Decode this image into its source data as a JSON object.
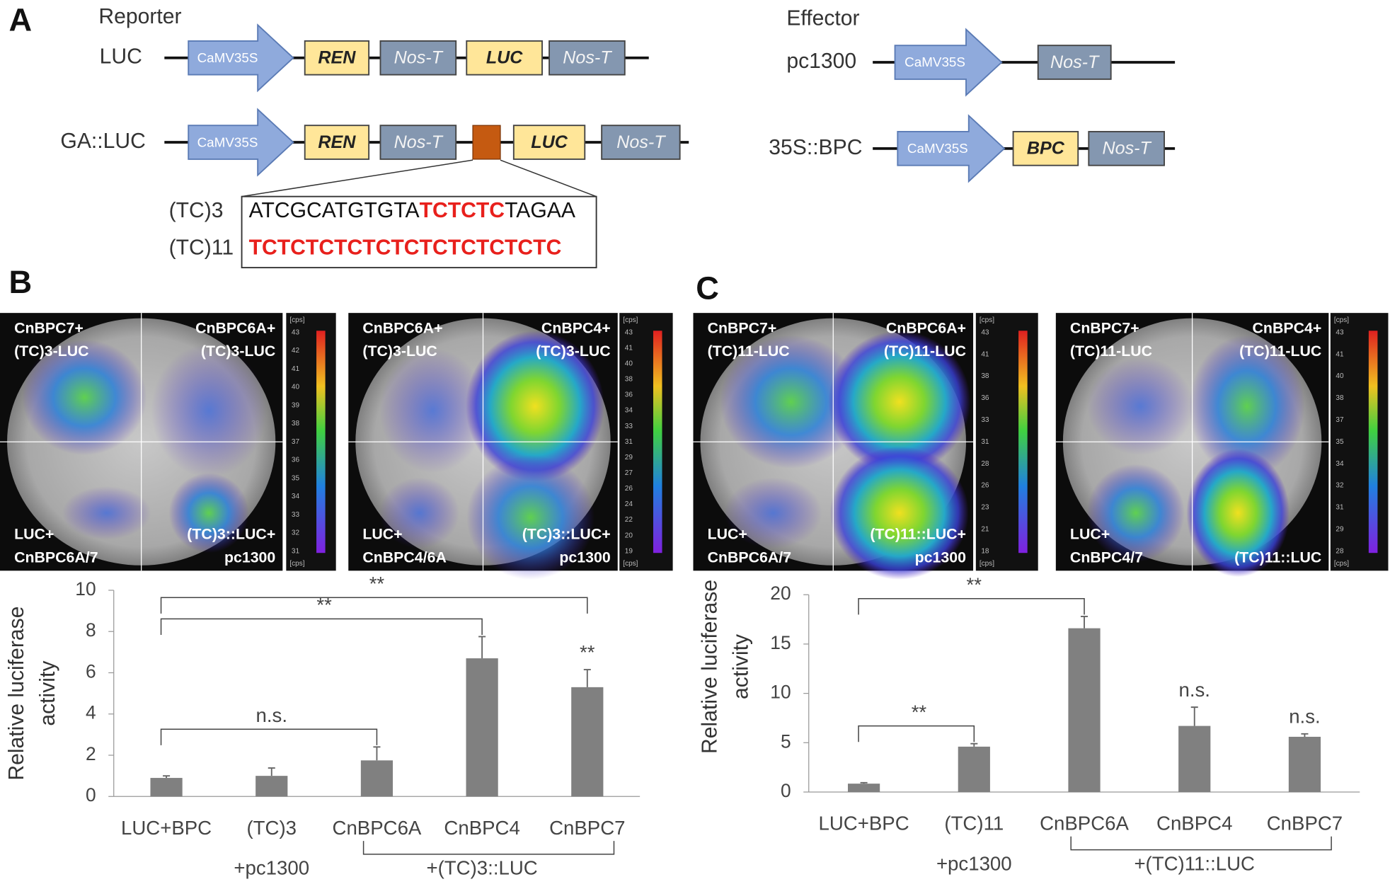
{
  "panels": [
    "A",
    "B",
    "C"
  ],
  "diagram": {
    "reporter_title": "Reporter",
    "effector_title": "Effector",
    "constructs": [
      {
        "name": "LUC",
        "parts": [
          "CaMV35S",
          "REN",
          "Nos-T",
          "LUC",
          "Nos-T"
        ]
      },
      {
        "name": "GA::LUC",
        "parts": [
          "CaMV35S",
          "REN",
          "Nos-T",
          "LUC",
          "Nos-T"
        ]
      },
      {
        "name": "pc1300",
        "parts": [
          "CaMV35S",
          "Nos-T"
        ]
      },
      {
        "name": "35S::BPC",
        "parts": [
          "CaMV35S",
          "BPC",
          "Nos-T"
        ]
      }
    ],
    "sequences": [
      {
        "name": "(TC)3",
        "segments": [
          {
            "text": "ATCGCATGTGTA",
            "color": "#111111"
          },
          {
            "text": "TCTCTC",
            "color": "#e8201c"
          },
          {
            "text": "TAGAA",
            "color": "#111111"
          }
        ]
      },
      {
        "name": "(TC)11",
        "segments": [
          {
            "text": "TCTCTCTCTCTCTCTCTCTCTC",
            "color": "#e8201c"
          }
        ]
      }
    ]
  },
  "images": [
    {
      "quadrants": [
        [
          "CnBPC7+",
          "(TC)3-LUC"
        ],
        [
          "CnBPC6A+",
          "(TC)3-LUC"
        ],
        [
          "LUC+",
          "CnBPC6A/7"
        ],
        [
          "(TC)3::LUC+",
          "pc1300"
        ]
      ],
      "colorbar": {
        "unit": "[cps]",
        "ticks": [
          43,
          42,
          41,
          40,
          39,
          38,
          37,
          36,
          35,
          34,
          33,
          32,
          31
        ]
      }
    },
    {
      "quadrants": [
        [
          "CnBPC6A+",
          "(TC)3-LUC"
        ],
        [
          "CnBPC4+",
          "(TC)3-LUC"
        ],
        [
          "LUC+",
          "CnBPC4/6A"
        ],
        [
          "(TC)3::LUC+",
          "pc1300"
        ]
      ],
      "colorbar": {
        "unit": "[cps]",
        "ticks": [
          43,
          41,
          40,
          38,
          36,
          34,
          33,
          31,
          29,
          27,
          26,
          24,
          22,
          20,
          19
        ]
      }
    },
    {
      "quadrants": [
        [
          "CnBPC7+",
          "(TC)11-LUC"
        ],
        [
          "CnBPC6A+",
          "(TC)11-LUC"
        ],
        [
          "LUC+",
          "CnBPC6A/7"
        ],
        [
          "(TC)11::LUC+",
          "pc1300"
        ]
      ],
      "colorbar": {
        "unit": "[cps]",
        "ticks": [
          43,
          41,
          38,
          36,
          33,
          31,
          28,
          26,
          23,
          21,
          18
        ]
      }
    },
    {
      "quadrants": [
        [
          "CnBPC7+",
          "(TC)11-LUC"
        ],
        [
          "CnBPC4+",
          "(TC)11-LUC"
        ],
        [
          "LUC+",
          "CnBPC4/7"
        ],
        [
          "(TC)11::LUC"
        ]
      ],
      "colorbar": {
        "unit": "[cps]",
        "ticks": [
          43,
          41,
          40,
          38,
          37,
          35,
          34,
          32,
          31,
          29,
          28
        ]
      }
    }
  ],
  "chart_data": [
    {
      "type": "bar",
      "ylabel": [
        "Relative luciferase",
        "activity"
      ],
      "categories": [
        "LUC+BPC",
        "(TC)3",
        "CnBPC6A",
        "CnBPC4",
        "CnBPC7"
      ],
      "values": [
        0.9,
        1.0,
        1.75,
        6.7,
        5.3
      ],
      "errors": [
        0.1,
        0.38,
        0.65,
        1.05,
        0.85
      ],
      "color": "#808080",
      "ylim": [
        0,
        10
      ],
      "yticks": [
        0,
        2,
        4,
        6,
        8,
        10
      ],
      "annotations": [
        {
          "text": "n.s.",
          "pair": [
            0,
            2
          ]
        },
        {
          "text": "**",
          "pair": [
            0,
            3
          ]
        },
        {
          "text": "**",
          "pair": [
            0,
            4
          ]
        },
        {
          "text": "**",
          "over": 4
        }
      ],
      "groups": [
        {
          "label": "+pc1300",
          "span": [
            1,
            1
          ]
        },
        {
          "label": "+(TC)3::LUC",
          "span": [
            2,
            4
          ]
        }
      ]
    },
    {
      "type": "bar",
      "ylabel": [
        "Relative luciferase",
        "activity"
      ],
      "categories": [
        "LUC+BPC",
        "(TC)11",
        "CnBPC6A",
        "CnBPC4",
        "CnBPC7"
      ],
      "values": [
        0.85,
        4.6,
        16.6,
        6.7,
        5.6
      ],
      "errors": [
        0.1,
        0.3,
        1.2,
        1.9,
        0.3
      ],
      "color": "#808080",
      "ylim": [
        0,
        20
      ],
      "yticks": [
        0,
        5,
        10,
        15,
        20
      ],
      "annotations": [
        {
          "text": "**",
          "pair": [
            0,
            1
          ]
        },
        {
          "text": "**",
          "pair": [
            0,
            2
          ]
        },
        {
          "text": "n.s.",
          "over": 3
        },
        {
          "text": "n.s.",
          "over": 4
        }
      ],
      "groups": [
        {
          "label": "+pc1300",
          "span": [
            1,
            1
          ]
        },
        {
          "label": "+(TC)11::LUC",
          "span": [
            2,
            4
          ]
        }
      ]
    }
  ]
}
